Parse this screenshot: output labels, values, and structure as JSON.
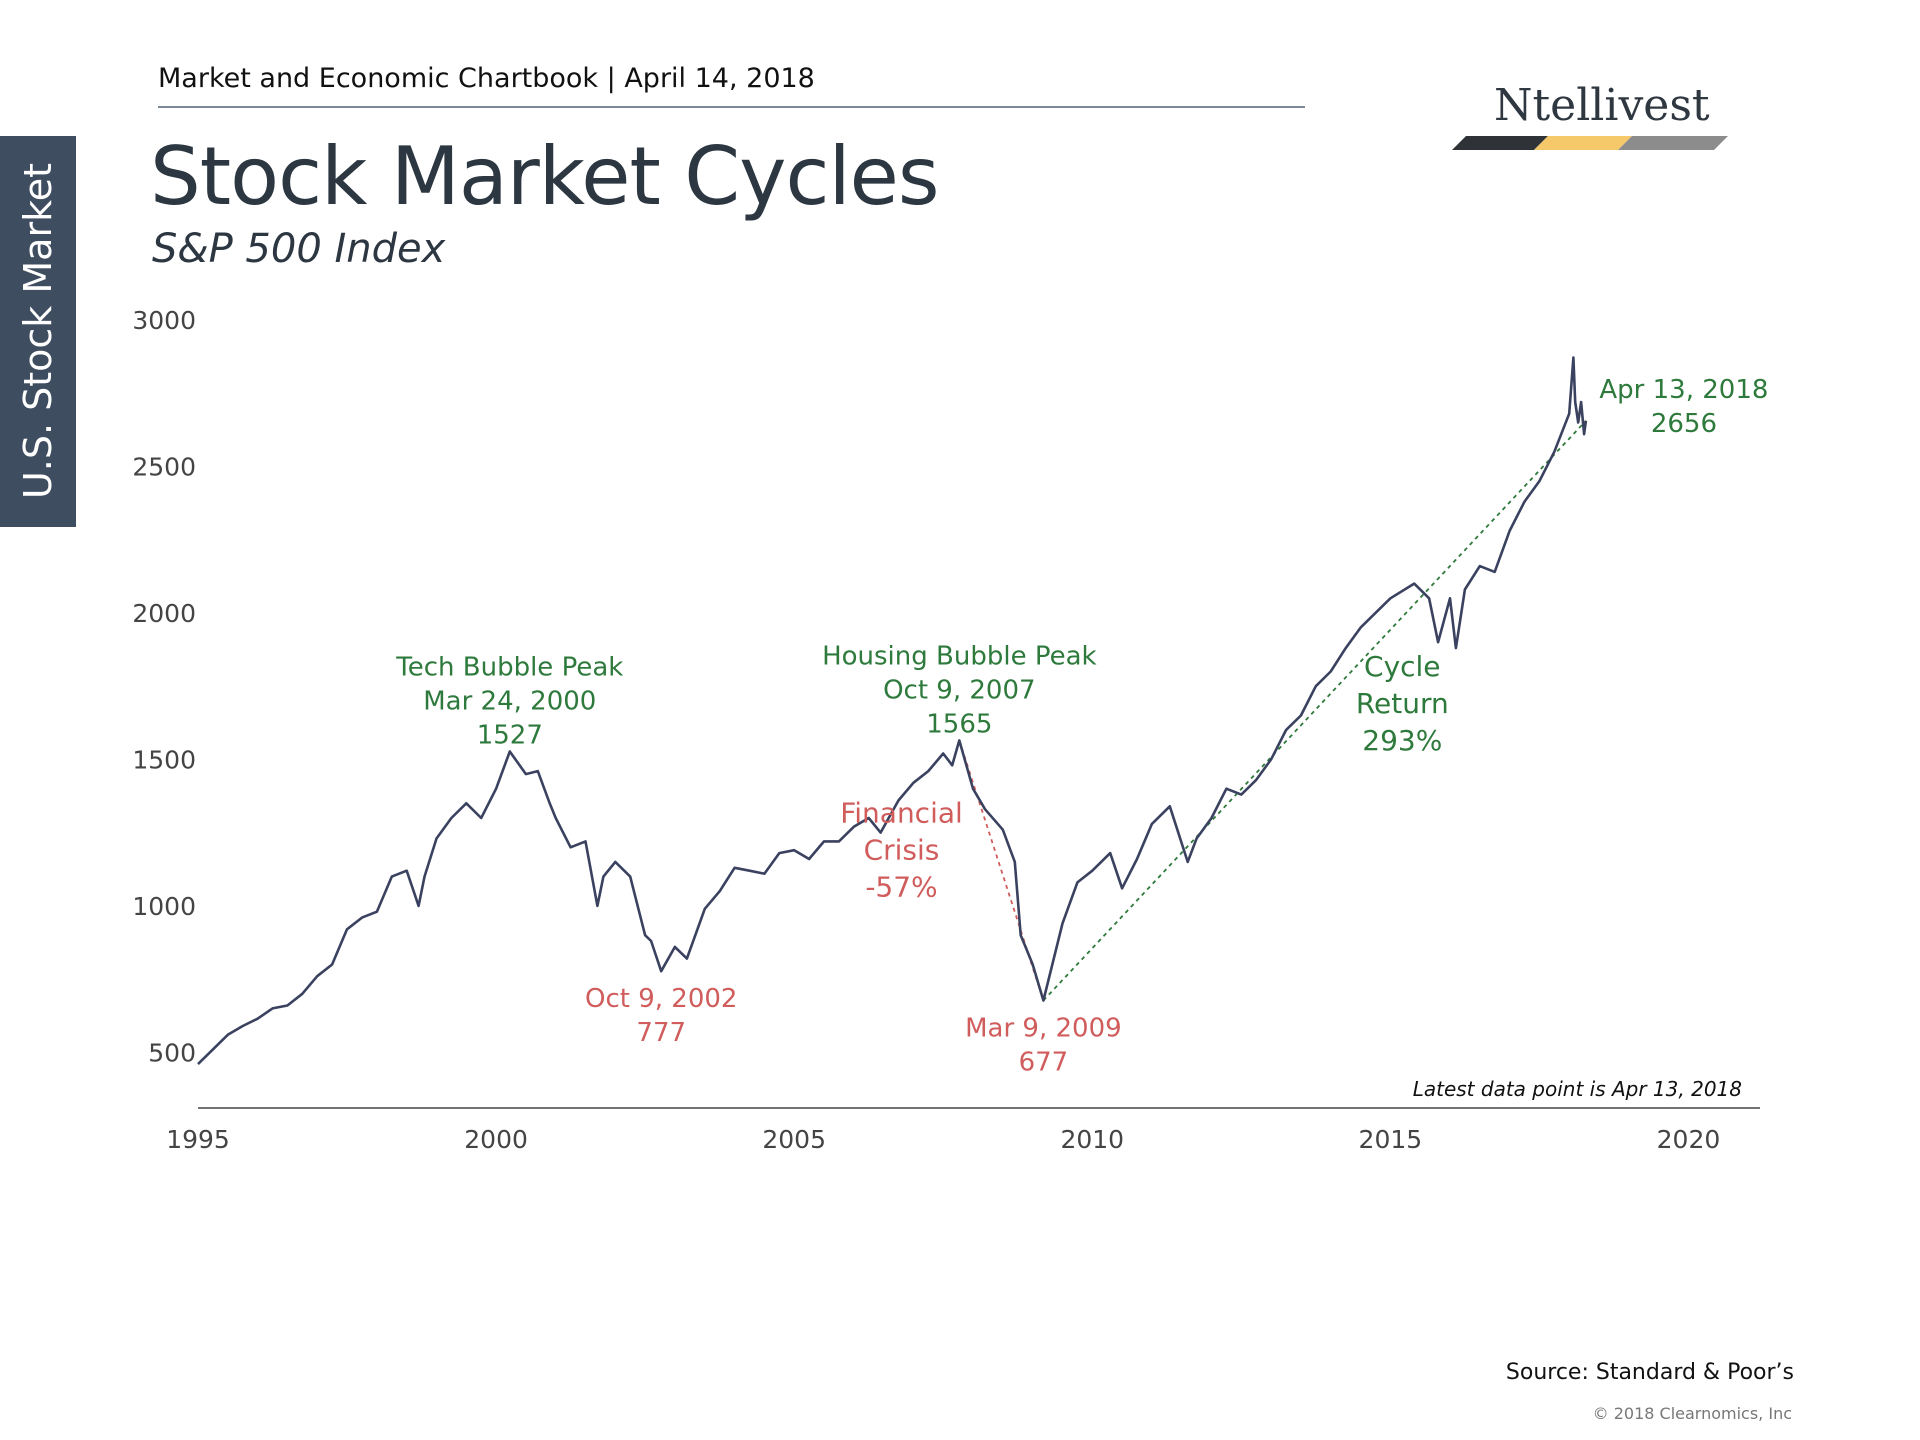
{
  "side_tab": {
    "label": "U.S. Stock Market"
  },
  "header": {
    "line": "Market and Economic Chartbook | April 14, 2018",
    "title": "Stock Market Cycles",
    "subtitle": "S&P 500 Index"
  },
  "logo": {
    "text": "Ntellivest"
  },
  "colors": {
    "line": "#3a4260",
    "green": "#2e7a3c",
    "red": "#d05c5c",
    "axis": "#444444",
    "side_tab_bg": "#3f4d61",
    "logo_dark": "#2f3338",
    "logo_gold": "#f5c96a",
    "logo_gray": "#8c8c8c"
  },
  "chart_data": {
    "type": "line",
    "title": "Stock Market Cycles",
    "subtitle": "S&P 500 Index",
    "xlim": [
      1995,
      2021.2
    ],
    "ylim": [
      310,
      3000
    ],
    "x_ticks": [
      1995,
      2000,
      2005,
      2010,
      2015,
      2020
    ],
    "y_ticks": [
      500,
      1000,
      1500,
      2000,
      2500,
      3000
    ],
    "grid": false,
    "series": [
      {
        "x": [
          1995.0,
          1995.25,
          1995.5,
          1995.75,
          1996.0,
          1996.25,
          1996.5,
          1996.75,
          1997.0,
          1997.25,
          1997.5,
          1997.75,
          1998.0,
          1998.25,
          1998.5,
          1998.7,
          1998.8,
          1999.0,
          1999.25,
          1999.5,
          1999.75,
          2000.0,
          2000.23,
          2000.5,
          2000.7,
          2000.9,
          2001.0,
          2001.25,
          2001.5,
          2001.7,
          2001.8,
          2002.0,
          2002.25,
          2002.5,
          2002.6,
          2002.77,
          2003.0,
          2003.2,
          2003.5,
          2003.75,
          2004.0,
          2004.25,
          2004.5,
          2004.75,
          2005.0,
          2005.25,
          2005.5,
          2005.75,
          2006.0,
          2006.25,
          2006.45,
          2006.75,
          2007.0,
          2007.25,
          2007.5,
          2007.65,
          2007.77,
          2008.0,
          2008.2,
          2008.5,
          2008.7,
          2008.8,
          2008.9,
          2009.0,
          2009.18,
          2009.5,
          2009.75,
          2010.0,
          2010.3,
          2010.5,
          2010.75,
          2011.0,
          2011.3,
          2011.6,
          2011.75,
          2012.0,
          2012.25,
          2012.5,
          2012.75,
          2013.0,
          2013.25,
          2013.5,
          2013.75,
          2014.0,
          2014.25,
          2014.5,
          2014.75,
          2015.0,
          2015.4,
          2015.65,
          2015.8,
          2016.0,
          2016.1,
          2016.25,
          2016.5,
          2016.75,
          2017.0,
          2017.25,
          2017.5,
          2017.75,
          2018.0,
          2018.07,
          2018.1,
          2018.15,
          2018.2,
          2018.25,
          2018.28
        ],
        "values": [
          460,
          510,
          560,
          590,
          615,
          650,
          660,
          700,
          760,
          800,
          920,
          960,
          980,
          1100,
          1120,
          1000,
          1100,
          1230,
          1300,
          1350,
          1300,
          1400,
          1527,
          1450,
          1460,
          1350,
          1300,
          1200,
          1220,
          1000,
          1100,
          1150,
          1100,
          900,
          880,
          777,
          860,
          820,
          990,
          1050,
          1130,
          1120,
          1110,
          1180,
          1190,
          1160,
          1220,
          1220,
          1270,
          1300,
          1250,
          1360,
          1420,
          1460,
          1520,
          1480,
          1565,
          1400,
          1330,
          1260,
          1150,
          900,
          850,
          800,
          677,
          940,
          1080,
          1120,
          1180,
          1060,
          1160,
          1280,
          1340,
          1150,
          1230,
          1300,
          1400,
          1380,
          1430,
          1500,
          1600,
          1650,
          1750,
          1800,
          1880,
          1950,
          2000,
          2050,
          2100,
          2050,
          1900,
          2050,
          1880,
          2080,
          2160,
          2140,
          2280,
          2380,
          2450,
          2550,
          2680,
          2872,
          2720,
          2650,
          2720,
          2610,
          2656
        ]
      }
    ],
    "trend_lines": [
      {
        "from": [
          2007.77,
          1565
        ],
        "to": [
          2009.18,
          677
        ],
        "color": "red"
      },
      {
        "from": [
          2009.18,
          677
        ],
        "to": [
          2018.28,
          2656
        ],
        "color": "green"
      }
    ],
    "annotations": [
      {
        "lines": [
          "Tech Bubble Peak",
          "Mar 24, 2000",
          "1527"
        ],
        "x": 2000.23,
        "y": 1527,
        "color": "green",
        "position": "above"
      },
      {
        "lines": [
          "Oct 9, 2002",
          "777"
        ],
        "x": 2002.77,
        "y": 777,
        "color": "red",
        "position": "below"
      },
      {
        "lines": [
          "Housing Bubble Peak",
          "Oct 9, 2007",
          "1565"
        ],
        "x": 2007.77,
        "y": 1565,
        "color": "green",
        "position": "above"
      },
      {
        "lines": [
          "Financial",
          "Crisis",
          "-57%"
        ],
        "x": 2006.8,
        "y": 1200,
        "color": "red",
        "position": "label"
      },
      {
        "lines": [
          "Mar 9, 2009",
          "677"
        ],
        "x": 2009.18,
        "y": 677,
        "color": "red",
        "position": "below"
      },
      {
        "lines": [
          "Cycle",
          "Return",
          "293%"
        ],
        "x": 2015.2,
        "y": 1700,
        "color": "green",
        "position": "label"
      },
      {
        "lines": [
          "Apr 13, 2018",
          "2656"
        ],
        "x": 2018.28,
        "y": 2656,
        "color": "green",
        "position": "right"
      }
    ],
    "note": "Latest data point is Apr 13, 2018"
  },
  "footer": {
    "source": "Source: Standard & Poor’s",
    "copyright": "© 2018 Clearnomics, Inc"
  }
}
